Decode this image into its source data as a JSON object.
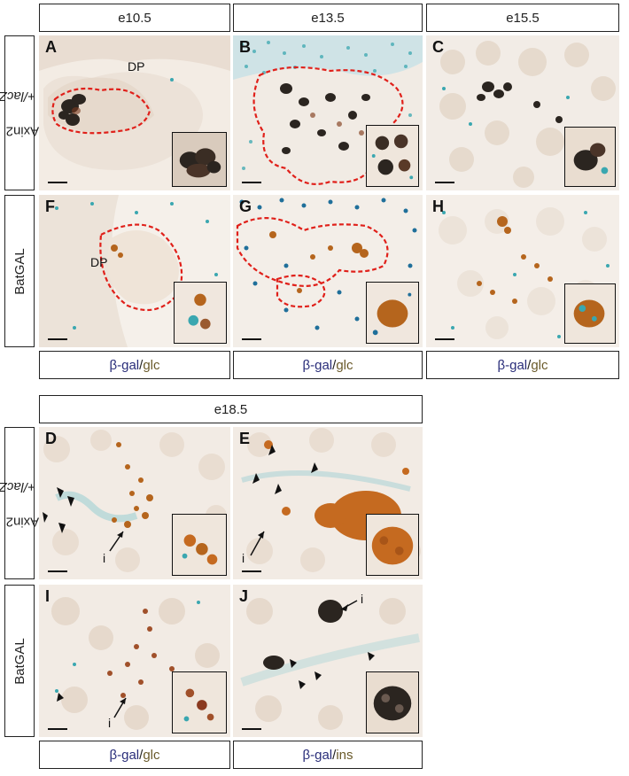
{
  "top_section": {
    "stage_headers": [
      "e10.5",
      "e13.5",
      "e15.5"
    ],
    "row_labels": {
      "axin2_main": "Axin2",
      "axin2_sup": "+/lacZ",
      "batgal": "BatGAL"
    },
    "panels": {
      "A": {
        "letter": "A",
        "region_label": "DP"
      },
      "B": {
        "letter": "B"
      },
      "C": {
        "letter": "C"
      },
      "F": {
        "letter": "F",
        "region_label": "DP"
      },
      "G": {
        "letter": "G"
      },
      "H": {
        "letter": "H"
      }
    },
    "stain_labels": [
      {
        "marker": "β-gal",
        "sep": "/",
        "target": "glc"
      },
      {
        "marker": "β-gal",
        "sep": "/",
        "target": "glc"
      },
      {
        "marker": "β-gal",
        "sep": "/",
        "target": "glc"
      }
    ]
  },
  "bottom_section": {
    "stage_header": "e18.5",
    "row_labels": {
      "axin2_main": "Axin2",
      "axin2_sup": "+/lacZ",
      "batgal": "BatGAL"
    },
    "panels": {
      "D": {
        "letter": "D",
        "islet_label": "i"
      },
      "E": {
        "letter": "E",
        "islet_label": "i"
      },
      "I": {
        "letter": "I",
        "islet_label": "i"
      },
      "J": {
        "letter": "J",
        "islet_label": "i"
      }
    },
    "stain_labels": [
      {
        "marker": "β-gal",
        "sep": "/",
        "target": "glc"
      },
      {
        "marker": "β-gal",
        "sep": "/",
        "target": "ins"
      }
    ]
  },
  "colors": {
    "tissue_background": "#efe6dc",
    "dp_outline": "#e0201a",
    "xgal_blue": "#3aa7b0",
    "dab_brown": "#b5651d",
    "dark_stain": "#2a2420"
  }
}
